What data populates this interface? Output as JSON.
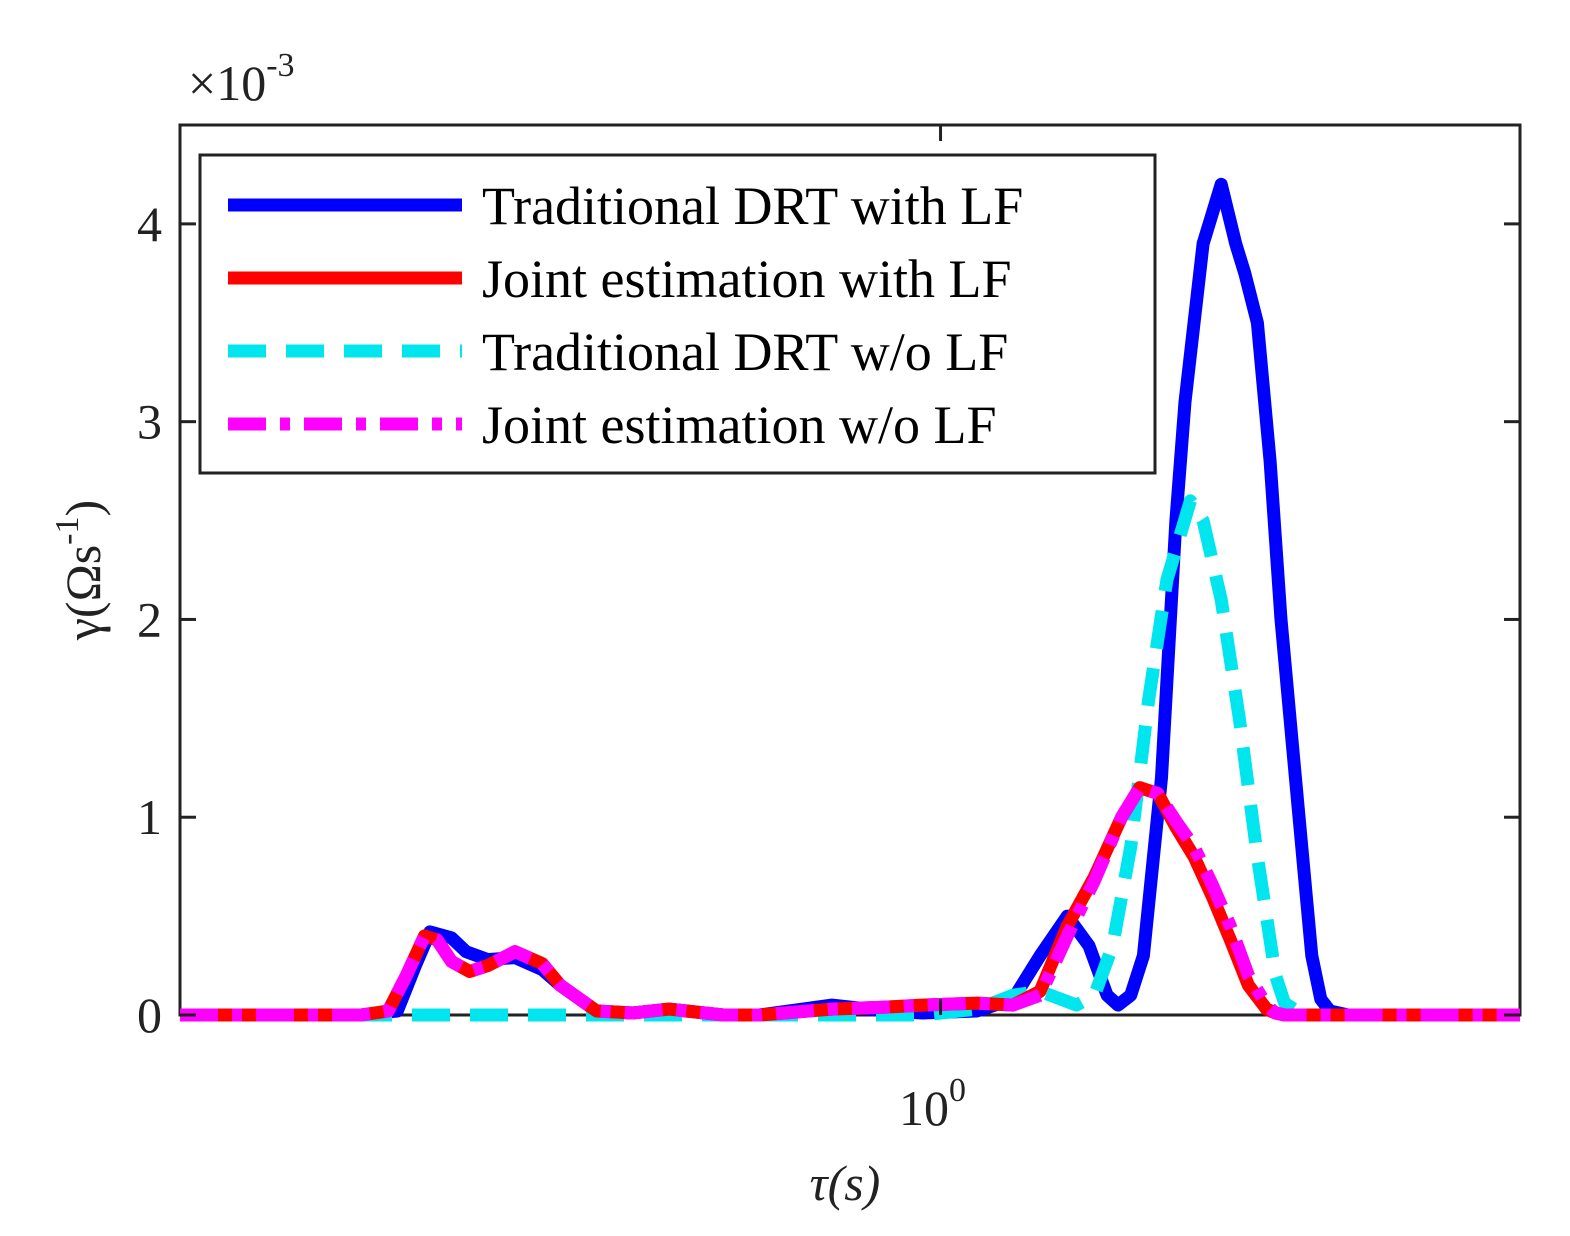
{
  "chart_data": {
    "type": "line",
    "title": "",
    "xlabel": "τ(s)",
    "ylabel": "γ(Ωs-1)",
    "ylabel_parts": {
      "pre": "γ(Ωs",
      "sup": "-1",
      "post": ")"
    },
    "y_multiplier": {
      "base": "×10",
      "exp": "-3"
    },
    "x_scale": "log",
    "xlim_log10": [
      -4.2,
      3.2
    ],
    "ylim": [
      0,
      4.5
    ],
    "x_ticks": [
      {
        "log10": 0,
        "base": "10",
        "exp": "0"
      }
    ],
    "y_ticks": [
      {
        "value": 0,
        "label": "0"
      },
      {
        "value": 1,
        "label": "1"
      },
      {
        "value": 2,
        "label": "2"
      },
      {
        "value": 3,
        "label": "3"
      },
      {
        "value": 4,
        "label": "4"
      }
    ],
    "grid": false,
    "legend_position": "top-left",
    "series": [
      {
        "name": "Traditional DRT with LF",
        "color": "#0000ff",
        "style": "solid",
        "x_log10": [
          -4.2,
          -3.2,
          -3.0,
          -2.9,
          -2.82,
          -2.7,
          -2.62,
          -2.5,
          -2.35,
          -2.2,
          -2.1,
          -1.9,
          -1.7,
          -1.5,
          -1.2,
          -1.0,
          -0.6,
          -0.3,
          -0.1,
          0.2,
          0.4,
          0.55,
          0.7,
          0.82,
          0.92,
          0.98,
          1.05,
          1.12,
          1.22,
          1.3,
          1.35,
          1.45,
          1.55,
          1.63,
          1.68,
          1.75,
          1.82,
          1.88,
          1.95,
          2.02,
          2.05,
          2.1,
          2.15,
          2.25,
          3.2
        ],
        "values": [
          0,
          0,
          0.02,
          0.25,
          0.42,
          0.39,
          0.32,
          0.28,
          0.29,
          0.23,
          0.15,
          0.02,
          0.01,
          0.03,
          0,
          0,
          0.05,
          0.02,
          0.01,
          0.02,
          0.08,
          0.3,
          0.5,
          0.35,
          0.1,
          0.05,
          0.1,
          0.3,
          1.2,
          2.5,
          3.1,
          3.9,
          4.2,
          3.9,
          3.75,
          3.5,
          2.8,
          2.0,
          1.3,
          0.6,
          0.3,
          0.08,
          0.02,
          0,
          0
        ]
      },
      {
        "name": "Joint estimation with LF",
        "color": "#ff0000",
        "style": "solid",
        "x_log10": [
          -4.2,
          -3.2,
          -3.05,
          -2.95,
          -2.85,
          -2.78,
          -2.7,
          -2.6,
          -2.5,
          -2.35,
          -2.2,
          -2.1,
          -1.9,
          -1.7,
          -1.5,
          -1.2,
          -1.0,
          -0.6,
          -0.3,
          -0.1,
          0.2,
          0.4,
          0.55,
          0.7,
          0.85,
          1.0,
          1.1,
          1.2,
          1.3,
          1.4,
          1.5,
          1.6,
          1.7,
          1.8,
          1.85,
          1.9,
          1.95,
          3.2
        ],
        "values": [
          0,
          0,
          0.02,
          0.2,
          0.4,
          0.38,
          0.27,
          0.22,
          0.25,
          0.32,
          0.26,
          0.15,
          0.02,
          0.01,
          0.03,
          0,
          0,
          0.03,
          0.04,
          0.05,
          0.06,
          0.05,
          0.12,
          0.45,
          0.7,
          1.0,
          1.15,
          1.12,
          0.95,
          0.8,
          0.6,
          0.38,
          0.15,
          0.03,
          0.01,
          0,
          0,
          0
        ]
      },
      {
        "name": "Traditional DRT w/o LF",
        "color": "#00e5ee",
        "style": "dashed",
        "x_log10": [
          -4.2,
          -0.1,
          0.2,
          0.4,
          0.55,
          0.75,
          0.85,
          0.95,
          1.05,
          1.15,
          1.25,
          1.38,
          1.45,
          1.55,
          1.65,
          1.75,
          1.85,
          1.9,
          2.0,
          3.2
        ],
        "values": [
          0,
          0,
          0.03,
          0.1,
          0.12,
          0.05,
          0.1,
          0.35,
          0.85,
          1.6,
          2.2,
          2.6,
          2.5,
          2.1,
          1.5,
          0.8,
          0.2,
          0.06,
          0,
          0
        ]
      },
      {
        "name": "Joint estimation w/o LF",
        "color": "#ff00ff",
        "style": "dashdot",
        "x_log10": [
          -4.2,
          -3.2,
          -3.05,
          -2.95,
          -2.85,
          -2.78,
          -2.7,
          -2.6,
          -2.5,
          -2.35,
          -2.2,
          -2.1,
          -1.9,
          -1.7,
          -1.5,
          -1.2,
          -1.0,
          -0.6,
          -0.3,
          -0.1,
          0.2,
          0.4,
          0.55,
          0.7,
          0.85,
          1.0,
          1.1,
          1.2,
          1.3,
          1.4,
          1.5,
          1.6,
          1.7,
          1.8,
          1.85,
          1.9,
          1.95,
          3.2
        ],
        "values": [
          0,
          0,
          0.02,
          0.2,
          0.4,
          0.38,
          0.27,
          0.22,
          0.25,
          0.32,
          0.26,
          0.15,
          0.02,
          0.01,
          0.03,
          0,
          0,
          0.03,
          0.04,
          0.05,
          0.06,
          0.05,
          0.1,
          0.4,
          0.68,
          1.0,
          1.15,
          1.12,
          0.98,
          0.85,
          0.66,
          0.45,
          0.2,
          0.05,
          0.01,
          0,
          0,
          0
        ]
      }
    ]
  }
}
